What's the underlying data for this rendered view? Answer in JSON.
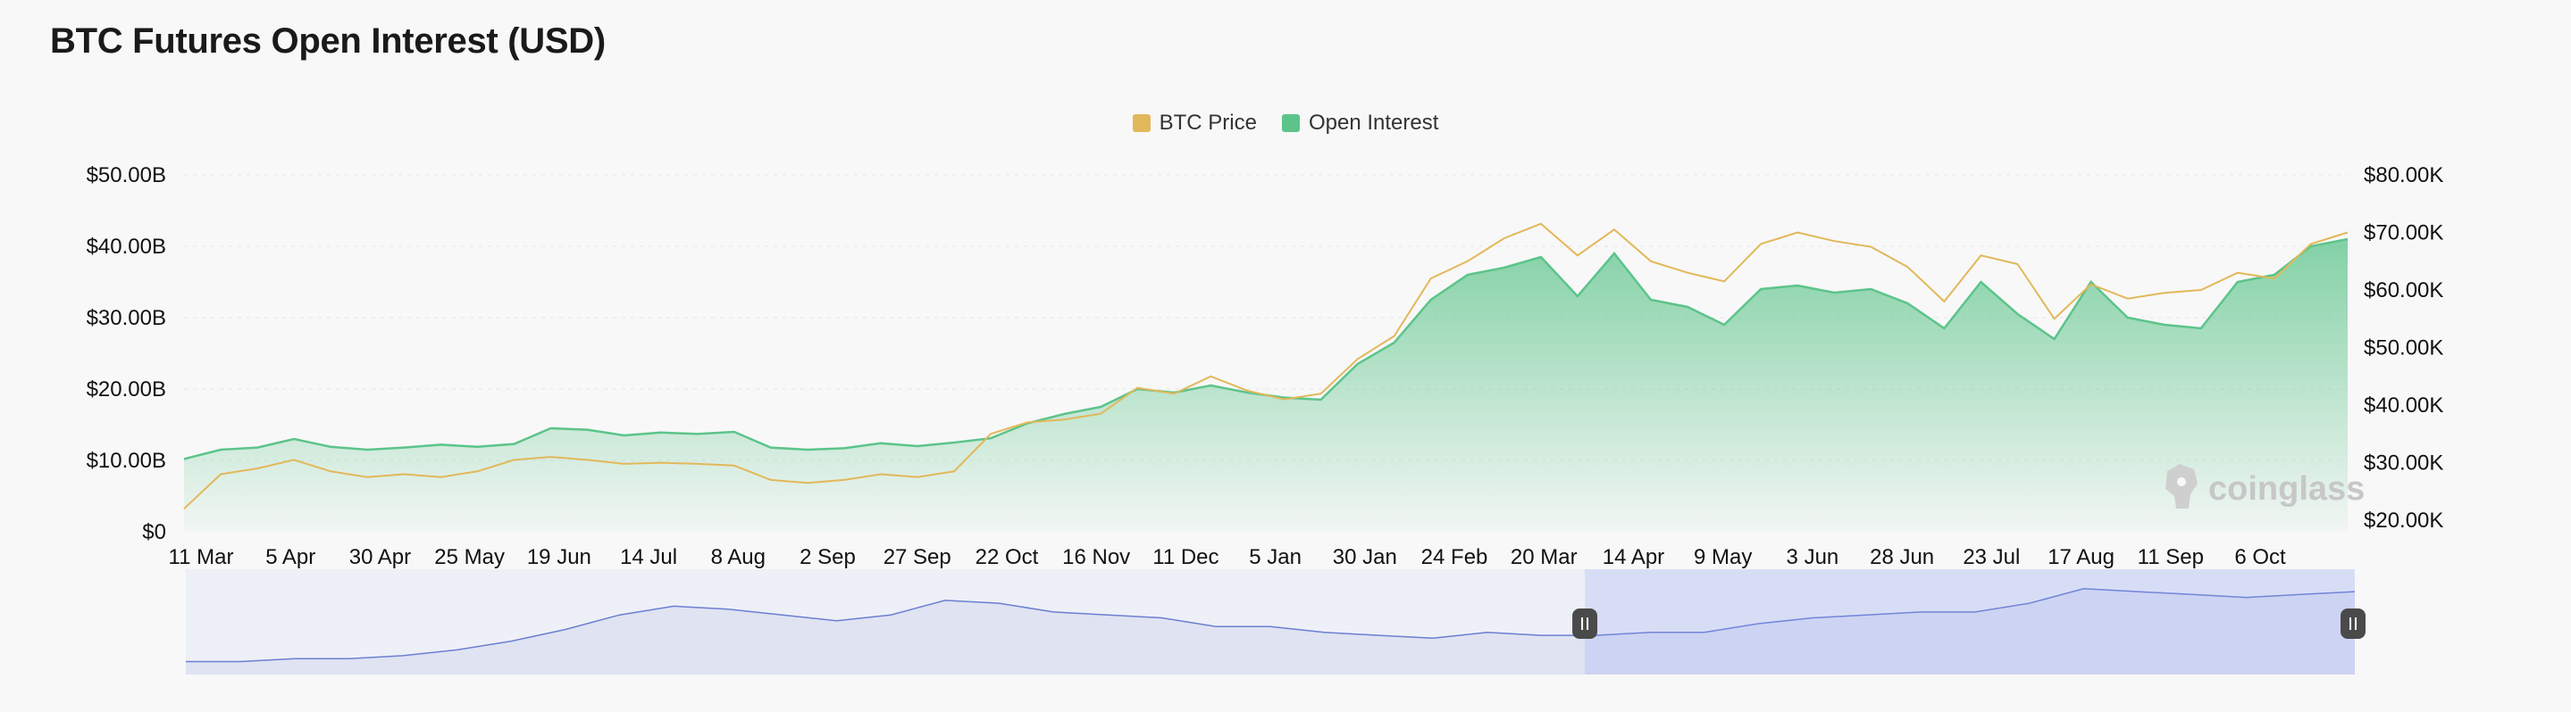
{
  "title": "BTC Futures Open Interest (USD)",
  "legend": [
    {
      "label": "BTC Price",
      "color": "#e2b85a"
    },
    {
      "label": "Open Interest",
      "color": "#5cc48a"
    }
  ],
  "watermark": "coinglass",
  "chart_data": {
    "type": "area",
    "title": "BTC Futures Open Interest (USD)",
    "left_axis": {
      "ticks": [
        "$0",
        "$10.00B",
        "$20.00B",
        "$30.00B",
        "$40.00B",
        "$50.00B"
      ],
      "range": [
        0,
        50
      ],
      "unit": "B"
    },
    "right_axis": {
      "ticks": [
        "$20.00K",
        "$30.00K",
        "$40.00K",
        "$50.00K",
        "$60.00K",
        "$70.00K",
        "$80.00K"
      ],
      "range": [
        18,
        80
      ],
      "unit": "K"
    },
    "x_ticks": [
      "11 Mar",
      "5 Apr",
      "30 Apr",
      "25 May",
      "19 Jun",
      "14 Jul",
      "8 Aug",
      "2 Sep",
      "27 Sep",
      "22 Oct",
      "16 Nov",
      "11 Dec",
      "5 Jan",
      "30 Jan",
      "24 Feb",
      "20 Mar",
      "14 Apr",
      "9 May",
      "3 Jun",
      "28 Jun",
      "23 Jul",
      "17 Aug",
      "11 Sep",
      "6 Oct"
    ],
    "grid": true,
    "legend_position": "top-center",
    "series": [
      {
        "name": "Open Interest",
        "axis": "left",
        "color": "#5cc48a",
        "values": [
          10.2,
          11.5,
          11.8,
          13.0,
          11.9,
          11.5,
          11.8,
          12.2,
          11.9,
          12.3,
          14.5,
          14.3,
          13.5,
          13.9,
          13.7,
          14.0,
          11.8,
          11.5,
          11.7,
          12.4,
          12.0,
          12.5,
          13.1,
          15.2,
          16.5,
          17.5,
          20.0,
          19.5,
          20.5,
          19.5,
          18.8,
          18.5,
          23.5,
          26.5,
          32.5,
          36.0,
          37.0,
          38.5,
          33.0,
          39.0,
          32.5,
          31.5,
          29.0,
          34.0,
          34.5,
          33.5,
          34.0,
          32.0,
          28.5,
          35.0,
          30.5,
          27.0,
          35.0,
          30.0,
          29.0,
          28.5,
          35.0,
          36.0,
          40.0,
          41.0
        ]
      },
      {
        "name": "BTC Price",
        "axis": "right",
        "color": "#e2b85a",
        "values": [
          22.0,
          28.0,
          29.0,
          30.5,
          28.5,
          27.5,
          28.0,
          27.5,
          28.5,
          30.5,
          31.0,
          30.5,
          29.8,
          30.0,
          29.8,
          29.5,
          27.0,
          26.5,
          27.0,
          28.0,
          27.5,
          28.5,
          35.0,
          37.0,
          37.5,
          38.5,
          43.0,
          42.0,
          45.0,
          42.5,
          41.0,
          42.0,
          48.0,
          52.0,
          62.0,
          65.0,
          69.0,
          71.5,
          66.0,
          70.5,
          65.0,
          63.0,
          61.5,
          68.0,
          70.0,
          68.5,
          67.5,
          64.0,
          58.0,
          66.0,
          64.5,
          55.0,
          61.0,
          58.5,
          59.5,
          60.0,
          63.0,
          62.0,
          68.0,
          70.0
        ]
      }
    ],
    "navigator": {
      "values": [
        2,
        2,
        3,
        3,
        4,
        6,
        9,
        13,
        18,
        21,
        20,
        18,
        16,
        18,
        23,
        22,
        19,
        18,
        17,
        14,
        14,
        12,
        11,
        10,
        12,
        11,
        11,
        12,
        12,
        15,
        17,
        18,
        19,
        19,
        22,
        27,
        26,
        25,
        24,
        25,
        26
      ],
      "selection": [
        0.645,
        1.0
      ]
    }
  }
}
